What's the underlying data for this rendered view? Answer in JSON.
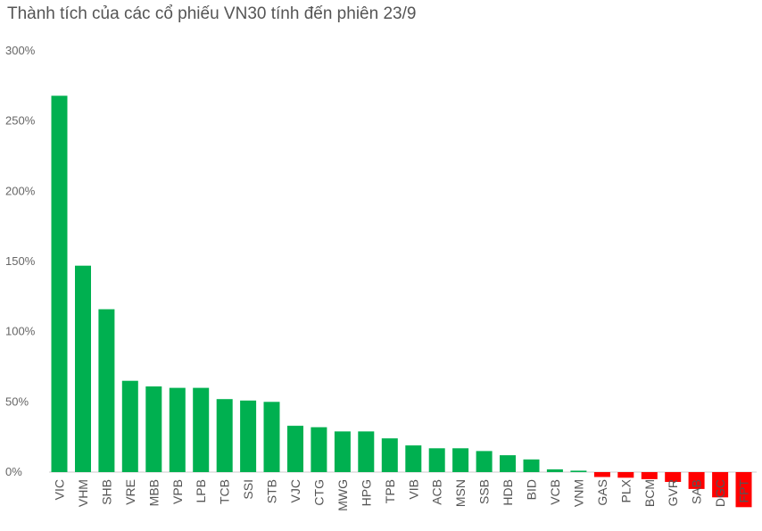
{
  "chart_data": {
    "type": "bar",
    "title": "Thành tích của các cổ phiếu VN30 tính đến phiên 23/9",
    "xlabel": "",
    "ylabel": "",
    "ylim": [
      0,
      300
    ],
    "y_unit": "%",
    "yticks": [
      0,
      50,
      100,
      150,
      200,
      250,
      300
    ],
    "ytick_labels": [
      "0%",
      "50%",
      "100%",
      "150%",
      "200%",
      "250%",
      "300%"
    ],
    "grid": false,
    "legend": "none",
    "categories": [
      "VIC",
      "VHM",
      "SHB",
      "VRE",
      "MBB",
      "VPB",
      "LPB",
      "TCB",
      "SSI",
      "STB",
      "VJC",
      "CTG",
      "MWG",
      "HPG",
      "TPB",
      "VIB",
      "ACB",
      "MSN",
      "SSB",
      "HDB",
      "BID",
      "VCB",
      "VNM",
      "GAS",
      "PLX",
      "BCM",
      "GVR",
      "SAB",
      "DGC",
      "FPT"
    ],
    "values": [
      268,
      147,
      116,
      65,
      61,
      60,
      60,
      52,
      51,
      50,
      33,
      32,
      29,
      29,
      24,
      19,
      17,
      17,
      15,
      12,
      9,
      2,
      1,
      -3.5,
      -4,
      -5,
      -7,
      -12,
      -18,
      -25
    ],
    "colors": {
      "positive": "#00B050",
      "negative": "#FF0000"
    }
  }
}
